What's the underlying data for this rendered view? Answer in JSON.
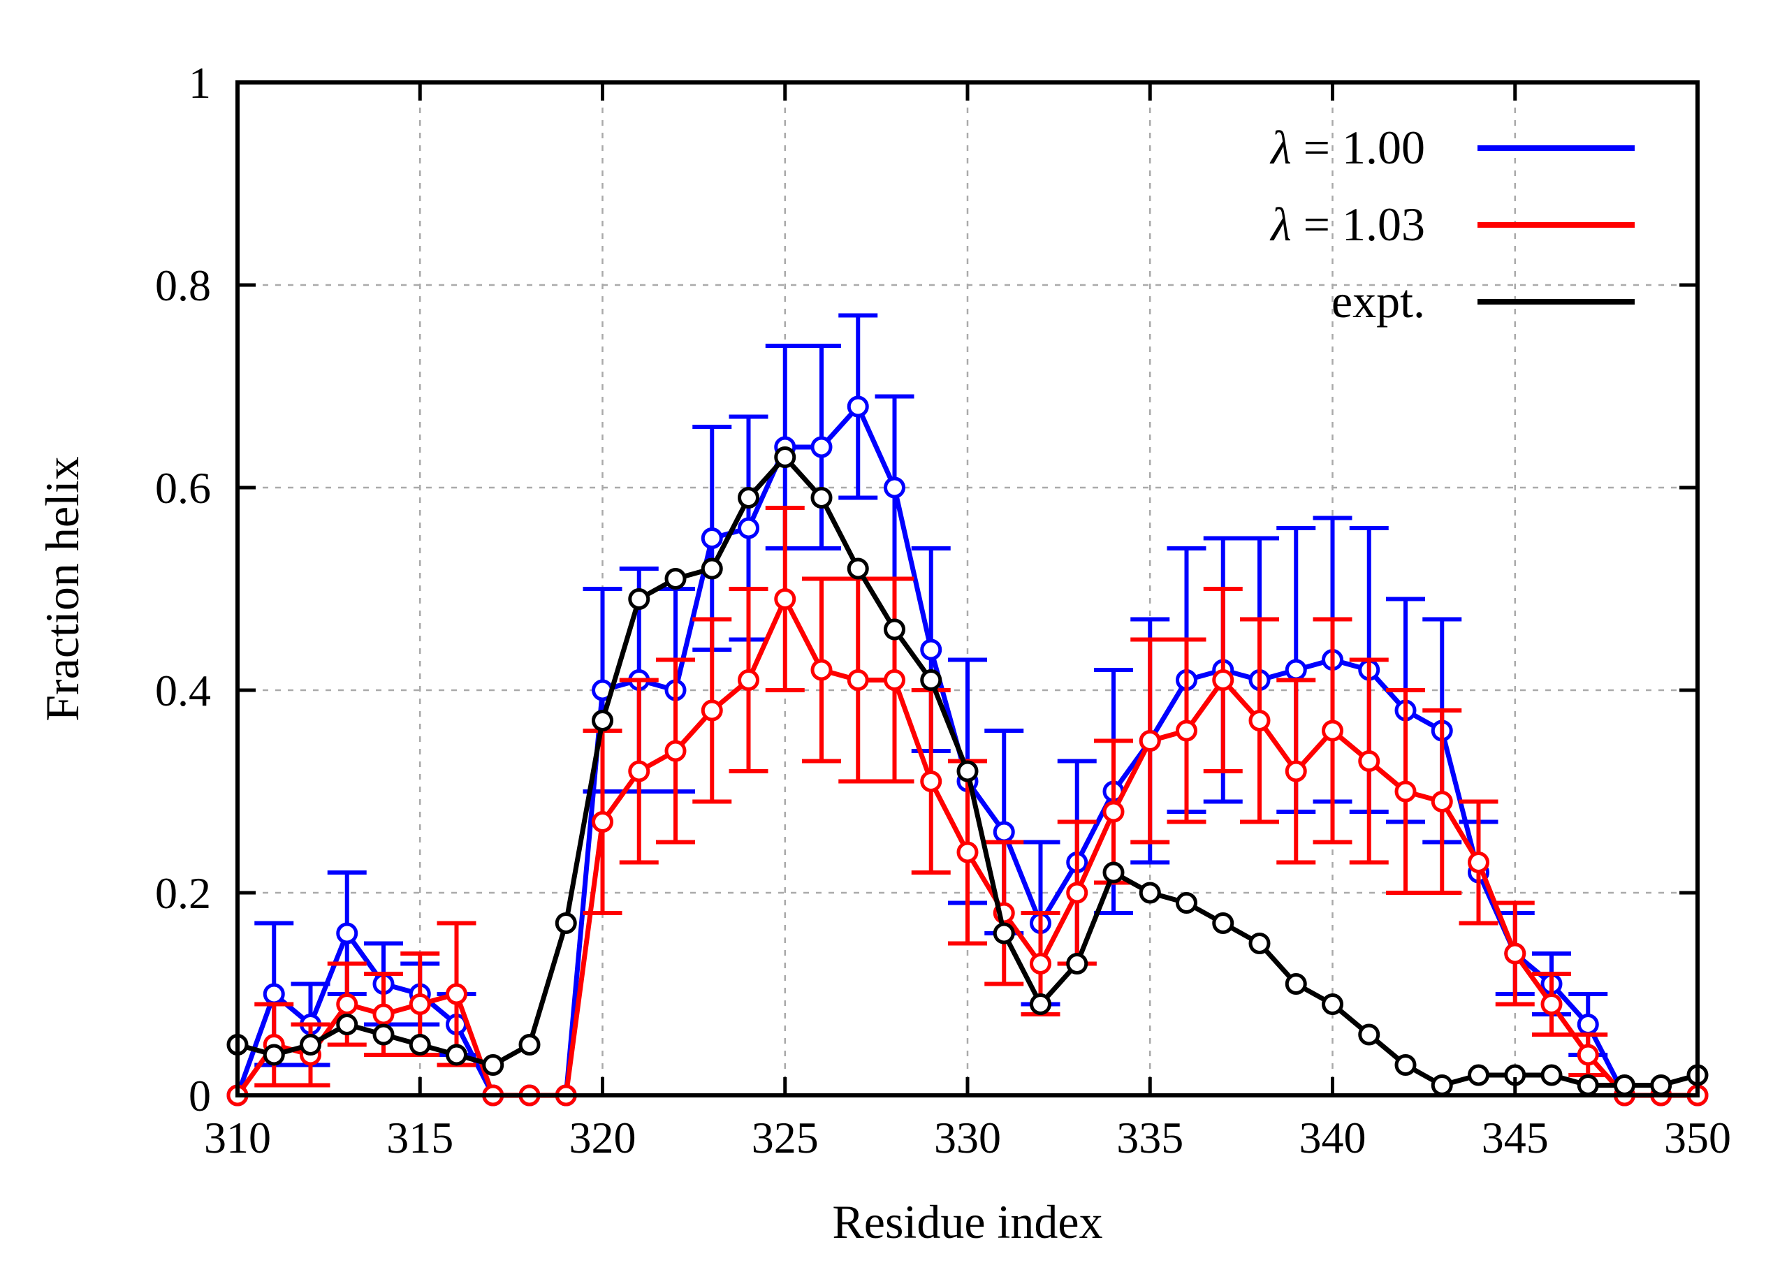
{
  "chart_data": {
    "type": "line",
    "title": "",
    "xlabel": "Residue index",
    "ylabel": "Fraction helix",
    "xlim": [
      310,
      350
    ],
    "ylim": [
      0,
      1
    ],
    "xticks": [
      310,
      315,
      320,
      325,
      330,
      335,
      340,
      345,
      350
    ],
    "yticks": [
      0,
      0.2,
      0.4,
      0.6,
      0.8,
      1
    ],
    "ytick_labels": [
      "0",
      "0.2",
      "0.4",
      "0.6",
      "0.8",
      "1"
    ],
    "grid": true,
    "legend_position": "top-right",
    "x": [
      310,
      311,
      312,
      313,
      314,
      315,
      316,
      317,
      318,
      319,
      320,
      321,
      322,
      323,
      324,
      325,
      326,
      327,
      328,
      329,
      330,
      331,
      332,
      333,
      334,
      335,
      336,
      337,
      338,
      339,
      340,
      341,
      342,
      343,
      344,
      345,
      346,
      347,
      348,
      349,
      350
    ],
    "series": [
      {
        "name": "λ = 1.00",
        "legend_symbol": "λ",
        "legend_value": "= 1.00",
        "color": "#0000ff",
        "error_bars": true,
        "values": [
          0.0,
          0.1,
          0.07,
          0.16,
          0.11,
          0.1,
          0.07,
          0.0,
          0.0,
          0.0,
          0.4,
          0.41,
          0.4,
          0.55,
          0.56,
          0.64,
          0.64,
          0.68,
          0.6,
          0.44,
          0.31,
          0.26,
          0.17,
          0.23,
          0.3,
          0.35,
          0.41,
          0.42,
          0.41,
          0.42,
          0.43,
          0.42,
          0.38,
          0.36,
          0.22,
          0.14,
          0.11,
          0.07,
          0.0,
          0.0,
          0.0
        ],
        "errors": [
          0.0,
          0.07,
          0.04,
          0.06,
          0.04,
          0.03,
          0.03,
          0.0,
          0.0,
          0.0,
          0.1,
          0.11,
          0.1,
          0.11,
          0.11,
          0.1,
          0.1,
          0.09,
          0.09,
          0.1,
          0.12,
          0.1,
          0.08,
          0.1,
          0.12,
          0.12,
          0.13,
          0.13,
          0.14,
          0.14,
          0.14,
          0.14,
          0.11,
          0.11,
          0.05,
          0.04,
          0.03,
          0.03,
          0.0,
          0.0,
          0.0
        ]
      },
      {
        "name": "λ = 1.03",
        "legend_symbol": "λ",
        "legend_value": "= 1.03",
        "color": "#ff0000",
        "error_bars": true,
        "values": [
          0.0,
          0.05,
          0.04,
          0.09,
          0.08,
          0.09,
          0.1,
          0.0,
          0.0,
          0.0,
          0.27,
          0.32,
          0.34,
          0.38,
          0.41,
          0.49,
          0.42,
          0.41,
          0.41,
          0.31,
          0.24,
          0.18,
          0.13,
          0.2,
          0.28,
          0.35,
          0.36,
          0.41,
          0.37,
          0.32,
          0.36,
          0.33,
          0.3,
          0.29,
          0.23,
          0.14,
          0.09,
          0.04,
          0.0,
          0.0,
          0.0
        ],
        "errors": [
          0.0,
          0.04,
          0.03,
          0.04,
          0.04,
          0.05,
          0.07,
          0.0,
          0.0,
          0.0,
          0.09,
          0.09,
          0.09,
          0.09,
          0.09,
          0.09,
          0.09,
          0.1,
          0.1,
          0.09,
          0.09,
          0.07,
          0.05,
          0.07,
          0.07,
          0.1,
          0.09,
          0.09,
          0.1,
          0.09,
          0.11,
          0.1,
          0.1,
          0.09,
          0.06,
          0.05,
          0.03,
          0.02,
          0.0,
          0.0,
          0.0
        ]
      },
      {
        "name": "expt.",
        "legend_symbol": "",
        "legend_value": "expt.",
        "color": "#000000",
        "error_bars": false,
        "values": [
          0.05,
          0.04,
          0.05,
          0.07,
          0.06,
          0.05,
          0.04,
          0.03,
          0.05,
          0.17,
          0.37,
          0.49,
          0.51,
          0.52,
          0.59,
          0.63,
          0.59,
          0.52,
          0.46,
          0.41,
          0.32,
          0.16,
          0.09,
          0.13,
          0.22,
          0.2,
          0.19,
          0.17,
          0.15,
          0.11,
          0.09,
          0.06,
          0.03,
          0.01,
          0.02,
          0.02,
          0.02,
          0.01,
          0.01,
          0.01,
          0.02
        ]
      }
    ]
  }
}
